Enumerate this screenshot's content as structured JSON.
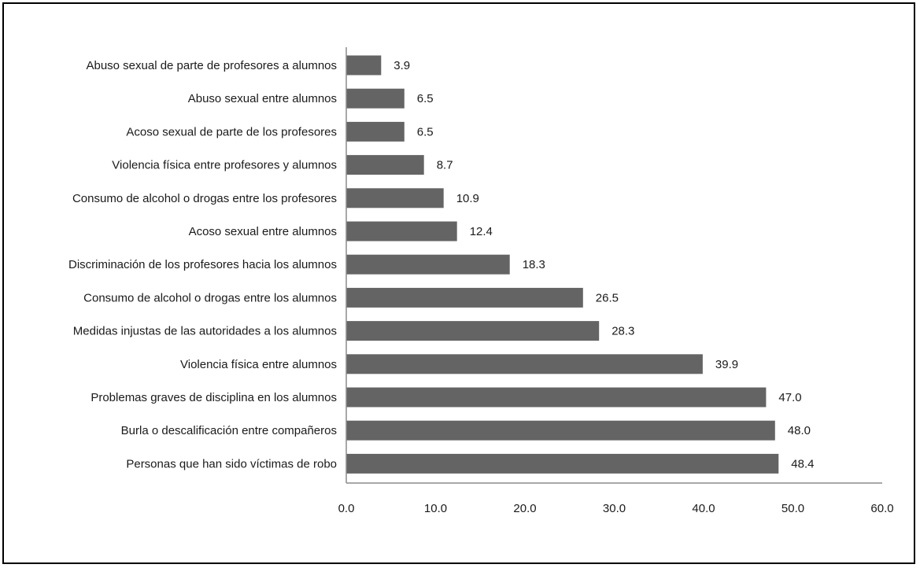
{
  "chart_data": {
    "type": "bar",
    "orientation": "horizontal",
    "categories": [
      "Abuso sexual de parte de profesores a alumnos",
      "Abuso sexual entre alumnos",
      "Acoso sexual de parte de los profesores",
      "Violencia física entre profesores y alumnos",
      "Consumo de alcohol o drogas entre los profesores",
      "Acoso sexual entre alumnos",
      "Discriminación de los profesores hacia los alumnos",
      "Consumo de alcohol o drogas entre los alumnos",
      "Medidas injustas de las autoridades a los alumnos",
      "Violencia física entre alumnos",
      "Problemas graves de disciplina en los alumnos",
      "Burla o descalificación entre compañeros",
      "Personas que han sido víctimas de robo"
    ],
    "values": [
      3.9,
      6.5,
      6.5,
      8.7,
      10.9,
      12.4,
      18.3,
      26.5,
      28.3,
      39.9,
      47.0,
      48.0,
      48.4
    ],
    "value_labels": [
      "3.9",
      "6.5",
      "6.5",
      "8.7",
      "10.9",
      "12.4",
      "18.3",
      "26.5",
      "28.3",
      "39.9",
      "47.0",
      "48.0",
      "48.4"
    ],
    "xlim": [
      0,
      60
    ],
    "xticks": [
      "0.0",
      "10.0",
      "20.0",
      "30.0",
      "40.0",
      "50.0",
      "60.0"
    ],
    "title": "",
    "xlabel": "",
    "ylabel": "",
    "grid": false,
    "bar_color": "#646464",
    "axis_color": "#8c8c8c"
  }
}
